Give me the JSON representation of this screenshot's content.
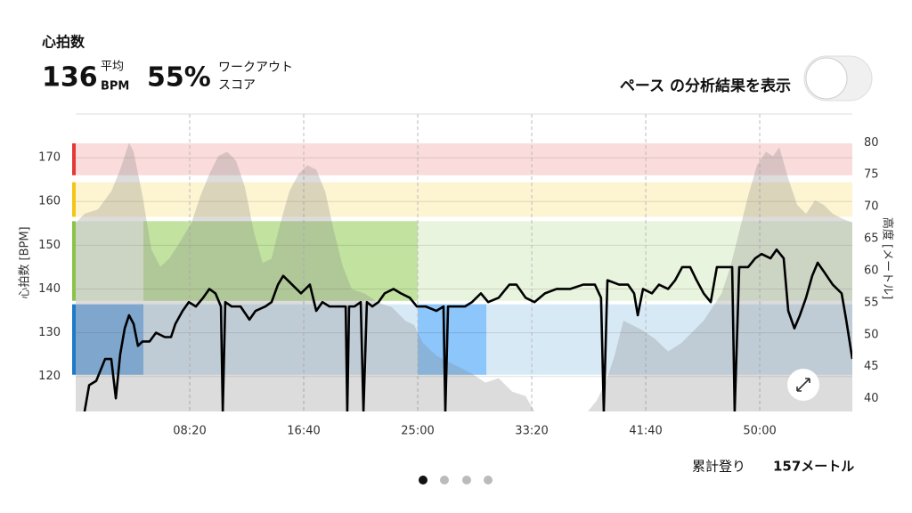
{
  "header": {
    "title": "心拍数",
    "avg_value": "136",
    "avg_label": "平均",
    "avg_unit": "BPM",
    "score_value": "55%",
    "score_label_1": "ワークアウト",
    "score_label_2": "スコア",
    "toggle_label": "ペース の分析結果を表示"
  },
  "footer": {
    "climb_label": "累計登り",
    "climb_value": "157メートル"
  },
  "chart_data": {
    "type": "line",
    "ylabel": "心拍数 [BPM]",
    "y2label": "高度 [メートル]",
    "xlim": [
      0,
      3406
    ],
    "xticks": [
      {
        "value": 500,
        "label": "08:20"
      },
      {
        "value": 1000,
        "label": "16:40"
      },
      {
        "value": 1500,
        "label": "25:00"
      },
      {
        "value": 2000,
        "label": "33:20"
      },
      {
        "value": 2500,
        "label": "41:40"
      },
      {
        "value": 3000,
        "label": "50:00"
      }
    ],
    "ylim": [
      112,
      180
    ],
    "yticks": [
      120,
      130,
      140,
      150,
      160,
      170
    ],
    "y2lim": [
      38,
      84.5
    ],
    "y2ticks": [
      40,
      45,
      50,
      55,
      60,
      65,
      70,
      75,
      80
    ],
    "grid": true,
    "zones": [
      {
        "lower": 166,
        "upper": 173.3,
        "color": "#e53935",
        "fill": "#fbdcdc"
      },
      {
        "lower": 156.5,
        "upper": 164.4,
        "color": "#f5c518",
        "fill": "#fdf4d2"
      },
      {
        "lower": 137.3,
        "upper": 155.5,
        "color": "#8bc34a",
        "fill": "#e9f4de"
      },
      {
        "lower": 120.4,
        "upper": 136.5,
        "color": "#1e7ac8",
        "fill": "#d8e9f6"
      }
    ],
    "zone_highlights": [
      {
        "zone": 3,
        "start": 0,
        "end": 297,
        "fill": "#7fb6ea"
      },
      {
        "zone": 2,
        "start": 297,
        "end": 1500,
        "fill": "#c2e2a0"
      },
      {
        "zone": 3,
        "start": 1500,
        "end": 1801,
        "fill": "#8cc6fb"
      }
    ],
    "series": [
      {
        "color": "#000000",
        "x": [
          39,
          59,
          90,
          129,
          156,
          176,
          195,
          215,
          234,
          254,
          273,
          293,
          324,
          352,
          391,
          418,
          437,
          469,
          496,
          527,
          559,
          586,
          613,
          637,
          645,
          656,
          684,
          723,
          762,
          789,
          832,
          859,
          887,
          910,
          949,
          988,
          1027,
          1055,
          1082,
          1113,
          1152,
          1184,
          1191,
          1199,
          1223,
          1250,
          1262,
          1277,
          1301,
          1328,
          1355,
          1394,
          1426,
          1465,
          1496,
          1535,
          1582,
          1613,
          1621,
          1633,
          1668,
          1707,
          1738,
          1777,
          1809,
          1855,
          1902,
          1933,
          1973,
          2012,
          2058,
          2109,
          2168,
          2226,
          2277,
          2304,
          2316,
          2332,
          2383,
          2422,
          2449,
          2465,
          2488,
          2527,
          2558,
          2598,
          2629,
          2660,
          2695,
          2723,
          2754,
          2785,
          2812,
          2851,
          2879,
          2890,
          2910,
          2949,
          2980,
          3008,
          3047,
          3074,
          3105,
          3125,
          3152,
          3176,
          3203,
          3230,
          3254,
          3281,
          3320,
          3359,
          3379,
          3406
        ],
        "values": [
          112,
          118,
          119,
          124,
          124,
          115,
          125,
          131,
          134,
          132,
          127,
          128,
          128,
          130,
          129,
          129,
          132,
          135,
          137,
          136,
          138,
          140,
          139,
          136,
          112,
          137,
          136,
          136,
          133,
          135,
          136,
          137,
          141,
          143,
          141,
          139,
          141,
          135,
          137,
          136,
          136,
          136,
          112,
          136,
          136,
          137,
          112,
          137,
          136,
          137,
          139,
          140,
          139,
          138,
          136,
          136,
          135,
          136,
          112,
          136,
          136,
          136,
          137,
          139,
          137,
          138,
          141,
          141,
          138,
          137,
          139,
          140,
          140,
          141,
          141,
          138,
          112,
          142,
          141,
          141,
          139,
          134,
          140,
          139,
          141,
          140,
          142,
          145,
          145,
          142,
          139,
          137,
          145,
          145,
          145,
          112,
          145,
          145,
          147,
          148,
          147,
          149,
          147,
          135,
          131,
          134,
          138,
          143,
          146,
          144,
          141,
          139,
          133,
          124
        ]
      },
      {
        "axis": "y2",
        "color": "#808080",
        "x": [
          0,
          39,
          98,
          156,
          195,
          234,
          254,
          293,
          332,
          371,
          410,
          449,
          508,
          547,
          586,
          625,
          664,
          703,
          742,
          781,
          820,
          859,
          898,
          937,
          977,
          1016,
          1055,
          1094,
          1133,
          1172,
          1211,
          1269,
          1328,
          1387,
          1445,
          1484,
          1523,
          1582,
          1660,
          1738,
          1797,
          1855,
          1914,
          1973,
          2012,
          2090,
          2168,
          2246,
          2285,
          2324,
          2363,
          2402,
          2441,
          2480,
          2539,
          2598,
          2656,
          2715,
          2754,
          2793,
          2832,
          2871,
          2910,
          2949,
          2988,
          3027,
          3058,
          3086,
          3125,
          3164,
          3203,
          3242,
          3281,
          3320,
          3359,
          3406
        ],
        "values": [
          67.5,
          68.9,
          69.6,
          72.4,
          75.8,
          80,
          78.6,
          71.7,
          63.3,
          60.6,
          61.9,
          64,
          67.5,
          71.7,
          75.1,
          77.9,
          78.6,
          77.2,
          73.1,
          66.1,
          61.2,
          61.9,
          67.5,
          72.4,
          75.1,
          76.5,
          75.8,
          72.4,
          66.1,
          60.6,
          57.1,
          56.4,
          55,
          54.3,
          52.2,
          51.5,
          48.7,
          46.7,
          45.3,
          43.9,
          42.5,
          43.2,
          41.1,
          40.4,
          38,
          38,
          38,
          38,
          39.7,
          42.5,
          46.7,
          52.2,
          51.5,
          50.8,
          49.4,
          47.4,
          48.7,
          50.8,
          52.2,
          54.3,
          56.4,
          60.6,
          66.1,
          71.7,
          76.5,
          78.6,
          77.9,
          79.3,
          74.4,
          70.3,
          68.9,
          71,
          70.3,
          68.9,
          68.2,
          67.5
        ]
      }
    ]
  }
}
